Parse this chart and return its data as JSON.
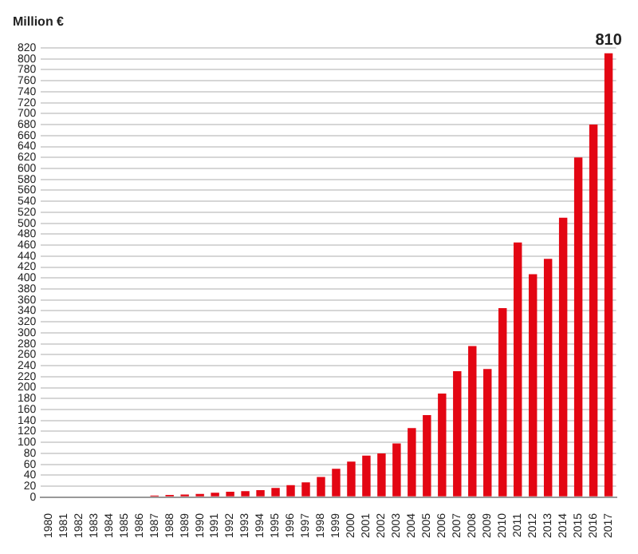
{
  "chart_data": {
    "type": "bar",
    "ylabel": "Million €",
    "categories": [
      "1980",
      "1981",
      "1982",
      "1983",
      "1984",
      "1985",
      "1986",
      "1987",
      "1988",
      "1989",
      "1990",
      "1991",
      "1992",
      "1993",
      "1994",
      "1995",
      "1996",
      "1997",
      "1998",
      "1999",
      "2000",
      "2001",
      "2002",
      "2003",
      "2004",
      "2005",
      "2006",
      "2007",
      "2008",
      "2009",
      "2010",
      "2011",
      "2012",
      "2013",
      "2014",
      "2015",
      "2016",
      "2017"
    ],
    "values": [
      null,
      null,
      null,
      null,
      null,
      null,
      null,
      3,
      4,
      5,
      6,
      8,
      10,
      11,
      13,
      17,
      22,
      27,
      37,
      52,
      65,
      76,
      80,
      98,
      126,
      150,
      189,
      230,
      276,
      234,
      345,
      465,
      407,
      435,
      510,
      620,
      680,
      810
    ],
    "value_labels": [
      null,
      null,
      null,
      null,
      null,
      null,
      null,
      null,
      null,
      null,
      null,
      null,
      null,
      null,
      null,
      null,
      null,
      null,
      null,
      null,
      null,
      null,
      null,
      null,
      null,
      null,
      null,
      null,
      null,
      null,
      null,
      null,
      null,
      null,
      null,
      null,
      null,
      "810"
    ],
    "color": "#e30613",
    "ylim": [
      0,
      820
    ],
    "yticks": [
      0,
      20,
      40,
      60,
      80,
      100,
      120,
      140,
      160,
      180,
      200,
      220,
      240,
      260,
      280,
      300,
      320,
      340,
      360,
      380,
      400,
      420,
      440,
      460,
      480,
      500,
      520,
      540,
      560,
      580,
      600,
      620,
      640,
      660,
      680,
      700,
      720,
      740,
      760,
      780,
      800,
      820
    ],
    "grid": "y"
  }
}
